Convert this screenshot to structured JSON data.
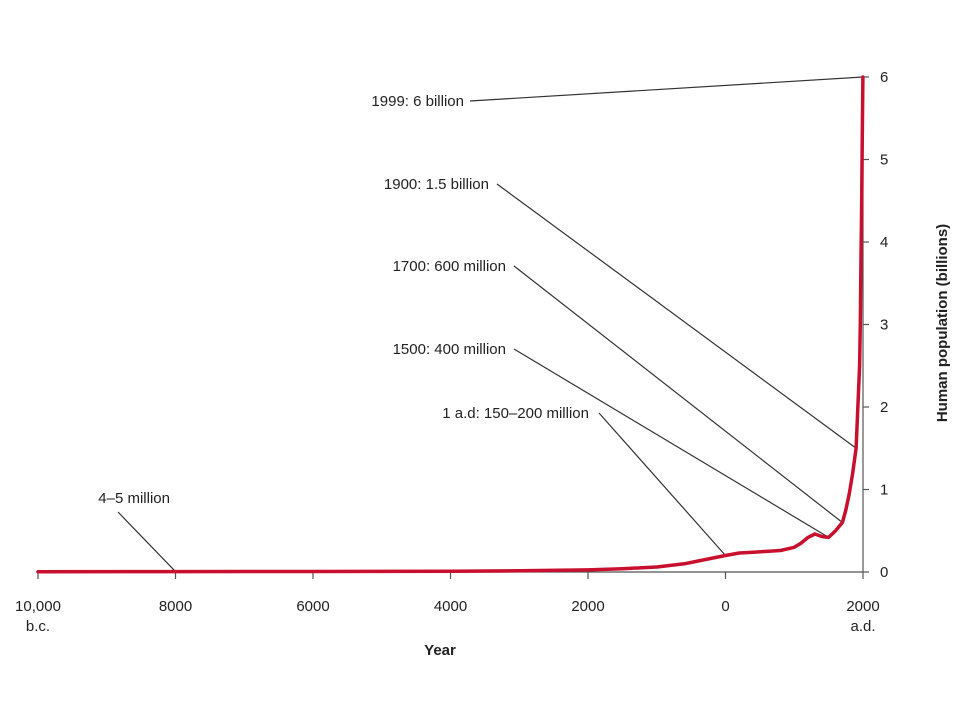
{
  "chart_data": {
    "type": "line",
    "title": "",
    "xlabel": "Year",
    "ylabel": "Human population (billions)",
    "xlim": [
      -10000,
      2000
    ],
    "ylim": [
      0,
      6
    ],
    "grid": false,
    "y_axis_side": "right",
    "x_ticks": [
      {
        "value": -10000,
        "label": "10,000",
        "sublabel": "b.c."
      },
      {
        "value": -8000,
        "label": "8000",
        "sublabel": ""
      },
      {
        "value": -6000,
        "label": "6000",
        "sublabel": ""
      },
      {
        "value": -4000,
        "label": "4000",
        "sublabel": ""
      },
      {
        "value": -2000,
        "label": "2000",
        "sublabel": ""
      },
      {
        "value": 0,
        "label": "0",
        "sublabel": ""
      },
      {
        "value": 2000,
        "label": "2000",
        "sublabel": "a.d."
      }
    ],
    "y_ticks": [
      0,
      1,
      2,
      3,
      4,
      5,
      6
    ],
    "series": [
      {
        "color": "#c8102e",
        "x": [
          -10000,
          -8000,
          -6000,
          -4000,
          -3000,
          -2000,
          -1500,
          -1000,
          -600,
          -300,
          0,
          200,
          400,
          600,
          800,
          1000,
          1100,
          1200,
          1300,
          1400,
          1500,
          1600,
          1700,
          1750,
          1800,
          1850,
          1900,
          1920,
          1940,
          1950,
          1960,
          1970,
          1980,
          1990,
          1999
        ],
        "y": [
          0.004,
          0.005,
          0.006,
          0.01,
          0.015,
          0.025,
          0.04,
          0.06,
          0.1,
          0.15,
          0.2,
          0.23,
          0.24,
          0.25,
          0.26,
          0.3,
          0.35,
          0.42,
          0.46,
          0.43,
          0.42,
          0.5,
          0.6,
          0.75,
          0.95,
          1.2,
          1.5,
          1.9,
          2.3,
          2.5,
          3.0,
          3.7,
          4.4,
          5.3,
          6.0
        ]
      }
    ],
    "annotations": [
      {
        "text": "1999: 6 billion",
        "point": [
          1999,
          6.0
        ]
      },
      {
        "text": "1900: 1.5 billion",
        "point": [
          1900,
          1.5
        ]
      },
      {
        "text": "1700: 600 million",
        "point": [
          1700,
          0.6
        ]
      },
      {
        "text": "1500: 400 million",
        "point": [
          1500,
          0.42
        ]
      },
      {
        "text": "1 a.d: 150–200 million",
        "point": [
          0,
          0.2
        ]
      },
      {
        "text": "4–5 million",
        "point": [
          -8000,
          0.005
        ]
      }
    ]
  }
}
